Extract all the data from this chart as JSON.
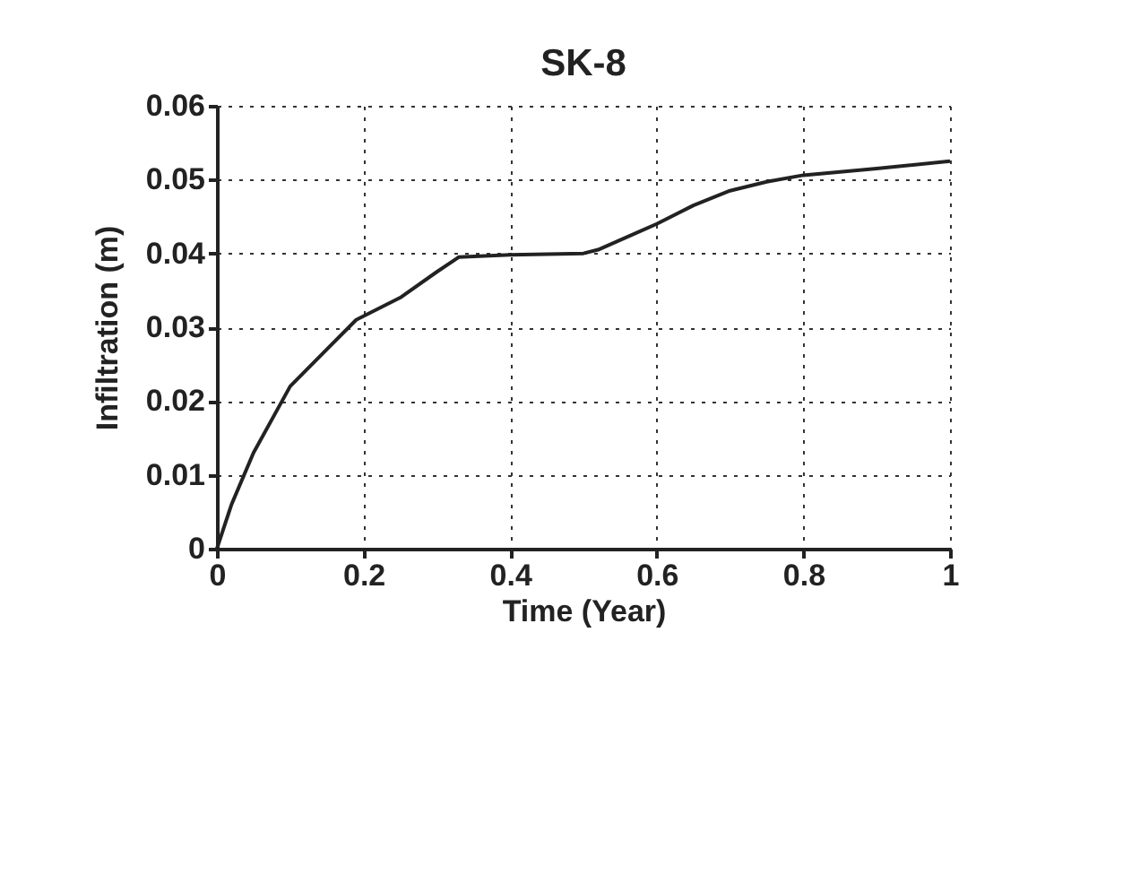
{
  "chart_data": {
    "type": "line",
    "title": "SK-8",
    "xlabel": "Time (Year)",
    "ylabel": "Infiltration (m)",
    "x": [
      0,
      0.02,
      0.05,
      0.1,
      0.15,
      0.19,
      0.25,
      0.3,
      0.33,
      0.4,
      0.5,
      0.52,
      0.6,
      0.65,
      0.7,
      0.75,
      0.8,
      0.9,
      1
    ],
    "series": [
      {
        "color": "#222222",
        "values": [
          0,
          0.006,
          0.013,
          0.022,
          0.027,
          0.031,
          0.034,
          0.0375,
          0.0395,
          0.0398,
          0.04,
          0.0405,
          0.044,
          0.0465,
          0.0485,
          0.0497,
          0.0506,
          0.0515,
          0.0525
        ]
      }
    ],
    "xlim": [
      0,
      1
    ],
    "xticks": [
      0,
      0.2,
      0.4,
      0.6,
      0.8,
      1
    ],
    "ylim": [
      0,
      0.06
    ],
    "yticks": [
      0,
      0.01,
      0.02,
      0.03,
      0.04,
      0.05,
      0.06
    ],
    "grid": true,
    "marker": "none",
    "line_style": "solid"
  }
}
